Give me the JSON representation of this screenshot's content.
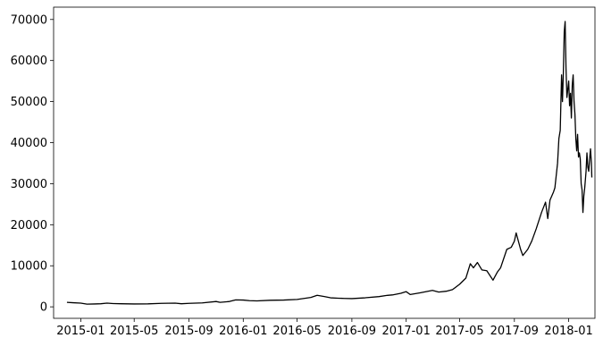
{
  "chart_data": {
    "type": "line",
    "title": "",
    "xlabel": "",
    "ylabel": "",
    "grid": false,
    "legend": "none",
    "line_color": "#000000",
    "x_axis": {
      "type": "date",
      "range": [
        "2014-11-01",
        "2018-03-01"
      ],
      "ticks": [
        "2015-01",
        "2015-05",
        "2015-09",
        "2016-01",
        "2016-05",
        "2016-09",
        "2017-01",
        "2017-05",
        "2017-09",
        "2018-01"
      ]
    },
    "y_axis": {
      "range": [
        -2800,
        73000
      ],
      "ticks": [
        0,
        10000,
        20000,
        30000,
        40000,
        50000,
        60000,
        70000
      ]
    },
    "series": [
      {
        "points": [
          [
            "2014-12-01",
            1100
          ],
          [
            "2014-12-15",
            1000
          ],
          [
            "2015-01-01",
            900
          ],
          [
            "2015-01-15",
            650
          ],
          [
            "2015-02-01",
            700
          ],
          [
            "2015-02-15",
            750
          ],
          [
            "2015-03-01",
            900
          ],
          [
            "2015-03-15",
            800
          ],
          [
            "2015-04-01",
            750
          ],
          [
            "2015-05-01",
            700
          ],
          [
            "2015-06-01",
            730
          ],
          [
            "2015-07-01",
            850
          ],
          [
            "2015-08-01",
            900
          ],
          [
            "2015-08-15",
            750
          ],
          [
            "2015-09-01",
            850
          ],
          [
            "2015-10-01",
            950
          ],
          [
            "2015-11-01",
            1300
          ],
          [
            "2015-11-10",
            1100
          ],
          [
            "2015-12-01",
            1300
          ],
          [
            "2015-12-15",
            1700
          ],
          [
            "2016-01-01",
            1650
          ],
          [
            "2016-01-15",
            1500
          ],
          [
            "2016-02-01",
            1450
          ],
          [
            "2016-03-01",
            1600
          ],
          [
            "2016-04-01",
            1650
          ],
          [
            "2016-05-01",
            1800
          ],
          [
            "2016-06-01",
            2300
          ],
          [
            "2016-06-15",
            2800
          ],
          [
            "2016-07-01",
            2500
          ],
          [
            "2016-07-15",
            2200
          ],
          [
            "2016-08-01",
            2100
          ],
          [
            "2016-08-15",
            2050
          ],
          [
            "2016-09-01",
            2000
          ],
          [
            "2016-10-01",
            2200
          ],
          [
            "2016-11-01",
            2500
          ],
          [
            "2016-11-20",
            2800
          ],
          [
            "2016-12-01",
            2900
          ],
          [
            "2016-12-20",
            3300
          ],
          [
            "2017-01-01",
            3700
          ],
          [
            "2017-01-10",
            3000
          ],
          [
            "2017-02-01",
            3400
          ],
          [
            "2017-03-01",
            4000
          ],
          [
            "2017-03-15",
            3600
          ],
          [
            "2017-04-01",
            3800
          ],
          [
            "2017-04-15",
            4200
          ],
          [
            "2017-05-01",
            5500
          ],
          [
            "2017-05-15",
            7000
          ],
          [
            "2017-05-25",
            10500
          ],
          [
            "2017-06-01",
            9500
          ],
          [
            "2017-06-10",
            10800
          ],
          [
            "2017-06-20",
            9000
          ],
          [
            "2017-07-01",
            8800
          ],
          [
            "2017-07-15",
            6500
          ],
          [
            "2017-07-25",
            8500
          ],
          [
            "2017-08-01",
            9500
          ],
          [
            "2017-08-15",
            14000
          ],
          [
            "2017-08-25",
            14500
          ],
          [
            "2017-09-01",
            16000
          ],
          [
            "2017-09-05",
            18000
          ],
          [
            "2017-09-15",
            14000
          ],
          [
            "2017-09-20",
            12500
          ],
          [
            "2017-10-01",
            14000
          ],
          [
            "2017-10-10",
            16000
          ],
          [
            "2017-10-20",
            19000
          ],
          [
            "2017-11-01",
            23000
          ],
          [
            "2017-11-10",
            25500
          ],
          [
            "2017-11-15",
            21500
          ],
          [
            "2017-11-20",
            26000
          ],
          [
            "2017-11-28",
            28000
          ],
          [
            "2017-12-01",
            29000
          ],
          [
            "2017-12-07",
            35000
          ],
          [
            "2017-12-10",
            41000
          ],
          [
            "2017-12-13",
            43000
          ],
          [
            "2017-12-16",
            56500
          ],
          [
            "2017-12-18",
            50000
          ],
          [
            "2017-12-20",
            57000
          ],
          [
            "2017-12-22",
            67000
          ],
          [
            "2017-12-24",
            69500
          ],
          [
            "2017-12-26",
            58000
          ],
          [
            "2017-12-28",
            51000
          ],
          [
            "2018-01-01",
            55000
          ],
          [
            "2018-01-03",
            49000
          ],
          [
            "2018-01-05",
            52000
          ],
          [
            "2018-01-07",
            46000
          ],
          [
            "2018-01-09",
            54000
          ],
          [
            "2018-01-11",
            56500
          ],
          [
            "2018-01-13",
            50000
          ],
          [
            "2018-01-15",
            47000
          ],
          [
            "2018-01-17",
            41000
          ],
          [
            "2018-01-19",
            38000
          ],
          [
            "2018-01-21",
            42000
          ],
          [
            "2018-01-23",
            36500
          ],
          [
            "2018-01-25",
            37500
          ],
          [
            "2018-01-27",
            36000
          ],
          [
            "2018-01-29",
            30000
          ],
          [
            "2018-01-31",
            28500
          ],
          [
            "2018-02-02",
            23000
          ],
          [
            "2018-02-04",
            27000
          ],
          [
            "2018-02-06",
            29000
          ],
          [
            "2018-02-09",
            33000
          ],
          [
            "2018-02-11",
            37500
          ],
          [
            "2018-02-13",
            34000
          ],
          [
            "2018-02-15",
            33000
          ],
          [
            "2018-02-17",
            36000
          ],
          [
            "2018-02-19",
            38500
          ],
          [
            "2018-02-21",
            35000
          ],
          [
            "2018-02-22",
            31500
          ]
        ]
      }
    ]
  }
}
